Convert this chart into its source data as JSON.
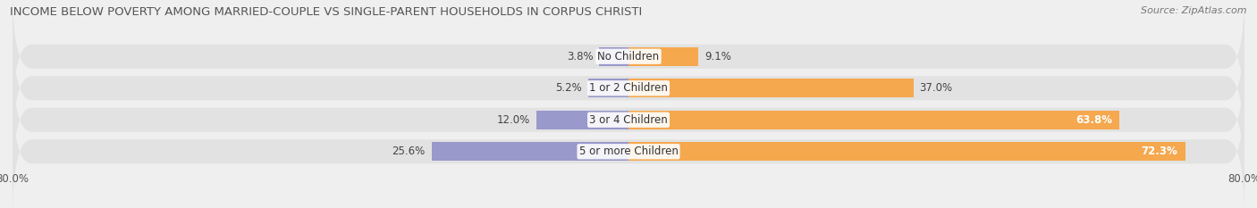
{
  "title": "INCOME BELOW POVERTY AMONG MARRIED-COUPLE VS SINGLE-PARENT HOUSEHOLDS IN CORPUS CHRISTI",
  "source": "Source: ZipAtlas.com",
  "categories": [
    "No Children",
    "1 or 2 Children",
    "3 or 4 Children",
    "5 or more Children"
  ],
  "married_values": [
    3.8,
    5.2,
    12.0,
    25.6
  ],
  "single_values": [
    9.1,
    37.0,
    63.8,
    72.3
  ],
  "married_color": "#9999cc",
  "single_color": "#f5a84e",
  "bar_bg_color": "#e2e2e2",
  "bg_color": "#efefef",
  "xlim": [
    -80,
    80
  ],
  "title_fontsize": 9.5,
  "source_fontsize": 8,
  "label_fontsize": 8.5,
  "bar_height": 0.58,
  "figsize": [
    14.06,
    2.33
  ],
  "dpi": 100
}
